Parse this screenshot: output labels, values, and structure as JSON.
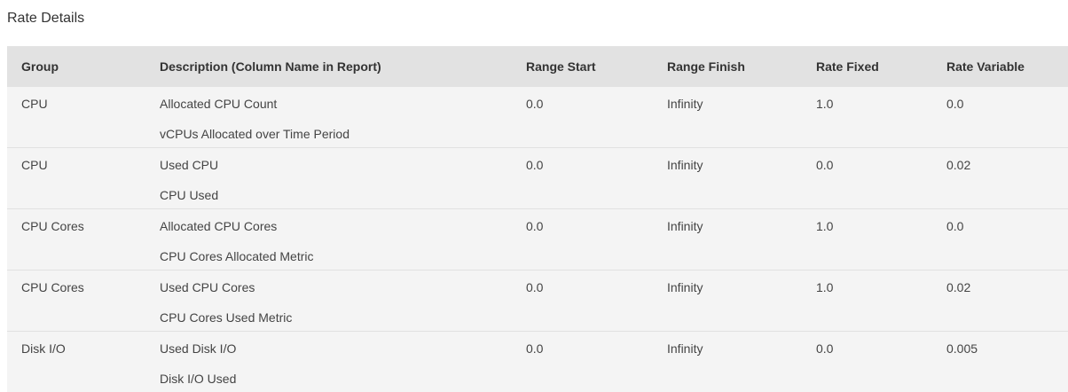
{
  "section_title": "Rate Details",
  "table": {
    "columns": [
      "Group",
      "Description (Column Name in Report)",
      "Range Start",
      "Range Finish",
      "Rate Fixed",
      "Rate Variable"
    ],
    "rows": [
      {
        "group": "CPU",
        "description": "Allocated CPU Count",
        "column_name": "vCPUs Allocated over Time Period",
        "range_start": "0.0",
        "range_finish": "Infinity",
        "rate_fixed": "1.0",
        "rate_variable": "0.0"
      },
      {
        "group": "CPU",
        "description": "Used CPU",
        "column_name": "CPU Used",
        "range_start": "0.0",
        "range_finish": "Infinity",
        "rate_fixed": "0.0",
        "rate_variable": "0.02"
      },
      {
        "group": "CPU Cores",
        "description": "Allocated CPU Cores",
        "column_name": "CPU Cores Allocated Metric",
        "range_start": "0.0",
        "range_finish": "Infinity",
        "rate_fixed": "1.0",
        "rate_variable": "0.0"
      },
      {
        "group": "CPU Cores",
        "description": "Used CPU Cores",
        "column_name": "CPU Cores Used Metric",
        "range_start": "0.0",
        "range_finish": "Infinity",
        "rate_fixed": "1.0",
        "rate_variable": "0.02"
      },
      {
        "group": "Disk I/O",
        "description": "Used Disk I/O",
        "column_name": "Disk I/O Used",
        "range_start": "0.0",
        "range_finish": "Infinity",
        "rate_fixed": "0.0",
        "rate_variable": "0.005"
      }
    ]
  }
}
